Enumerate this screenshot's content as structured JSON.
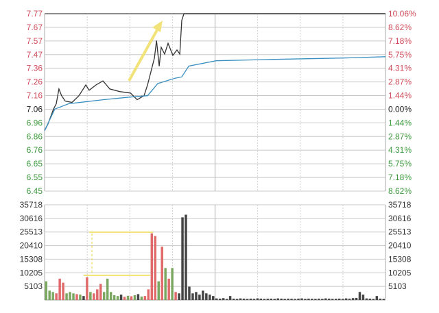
{
  "chart_data": [
    {
      "type": "line",
      "title": "",
      "x_unit": "minutes since open",
      "xlim": [
        0,
        240
      ],
      "ylim": [
        6.45,
        7.77
      ],
      "prev_close": 7.06,
      "grid": true,
      "y_tick_labels": [
        "7.77",
        "7.67",
        "7.57",
        "7.47",
        "7.36",
        "7.26",
        "7.16",
        "7.06",
        "6.96",
        "6.86",
        "6.76",
        "6.65",
        "6.55",
        "6.45"
      ],
      "pct_tick_labels": [
        "10.06%",
        "8.62%",
        "7.18%",
        "5.75%",
        "4.31%",
        "2.87%",
        "1.44%",
        "0.00%",
        "1.44%",
        "2.87%",
        "4.31%",
        "5.75%",
        "7.18%",
        "8.62%"
      ],
      "series": [
        {
          "key": "price",
          "color": "#333333",
          "points": [
            [
              0,
              6.9
            ],
            [
              2.4,
              6.95
            ],
            [
              6.3,
              7.06
            ],
            [
              8.2,
              7.1
            ],
            [
              10.1,
              7.21
            ],
            [
              12,
              7.16
            ],
            [
              14.5,
              7.12
            ],
            [
              19.3,
              7.11
            ],
            [
              24.2,
              7.16
            ],
            [
              29,
              7.24
            ],
            [
              31.4,
              7.2
            ],
            [
              36.2,
              7.24
            ],
            [
              41.1,
              7.27
            ],
            [
              45.9,
              7.21
            ],
            [
              53.1,
              7.19
            ],
            [
              60.4,
              7.18
            ],
            [
              65.2,
              7.13
            ],
            [
              70,
              7.16
            ],
            [
              72.5,
              7.24
            ],
            [
              74.9,
              7.34
            ],
            [
              77.3,
              7.44
            ],
            [
              78.8,
              7.57
            ],
            [
              80.7,
              7.38
            ],
            [
              82.1,
              7.52
            ],
            [
              84.5,
              7.47
            ],
            [
              86.9,
              7.55
            ],
            [
              90.3,
              7.46
            ],
            [
              93.2,
              7.5
            ],
            [
              95.2,
              7.47
            ],
            [
              96.6,
              7.72
            ],
            [
              98.1,
              7.77
            ],
            [
              240,
              7.77
            ]
          ]
        },
        {
          "key": "average",
          "color": "#3a8fc0",
          "points": [
            [
              0,
              6.9
            ],
            [
              7.2,
              7.06
            ],
            [
              16.9,
              7.1
            ],
            [
              41.1,
              7.13
            ],
            [
              60.4,
              7.15
            ],
            [
              72.5,
              7.16
            ],
            [
              79.7,
              7.25
            ],
            [
              91.8,
              7.29
            ],
            [
              96.6,
              7.3
            ],
            [
              101.5,
              7.38
            ],
            [
              120.8,
              7.42
            ],
            [
              161.9,
              7.43
            ],
            [
              210.2,
              7.44
            ],
            [
              240,
              7.45
            ]
          ]
        }
      ]
    },
    {
      "type": "bar",
      "title": "",
      "ylim": [
        0,
        35718
      ],
      "y_tick_labels": [
        "35718",
        "30616",
        "25513",
        "20410",
        "15308",
        "10205",
        "5103"
      ],
      "colors": {
        "r": "#e06a6a",
        "g": "#7aa860",
        "k": "#444444"
      },
      "values": [
        7000,
        3500,
        3000,
        2500,
        8000,
        6500,
        2500,
        3000,
        2500,
        2200,
        2000,
        1500,
        8500,
        3000,
        2500,
        4000,
        6000,
        3000,
        8000,
        3000,
        1800,
        1500,
        2000,
        1200,
        1600,
        1400,
        1800,
        2200,
        1300,
        1500,
        4000,
        25000,
        24000,
        7000,
        20000,
        12000,
        8000,
        12000,
        3000,
        2500,
        31000,
        32000,
        5000,
        2500,
        3000,
        2000,
        3500,
        2500,
        2000,
        1500,
        600,
        500,
        700,
        400,
        1500,
        500,
        400,
        600,
        500,
        400,
        500,
        400,
        600,
        500,
        400,
        450,
        500,
        400,
        600,
        500,
        400,
        500,
        450,
        400,
        500,
        600,
        400,
        500,
        450,
        400,
        500,
        400,
        600,
        500,
        400,
        450,
        500,
        400,
        600,
        500,
        700,
        800,
        3000,
        2000,
        600,
        500,
        400,
        1500,
        500,
        400
      ],
      "value_colors": "gggrrrgggrgkrgrrrgggggkrgrgkgrrrrgrgrgrkkkkkkkkkkkkkkkkkkkkkkkkkkkkkkkkkkkkkkkkkkkkkkkkkkkkkkkkkkkkk"
    }
  ],
  "annotations": {
    "color": "#f2e27a"
  }
}
